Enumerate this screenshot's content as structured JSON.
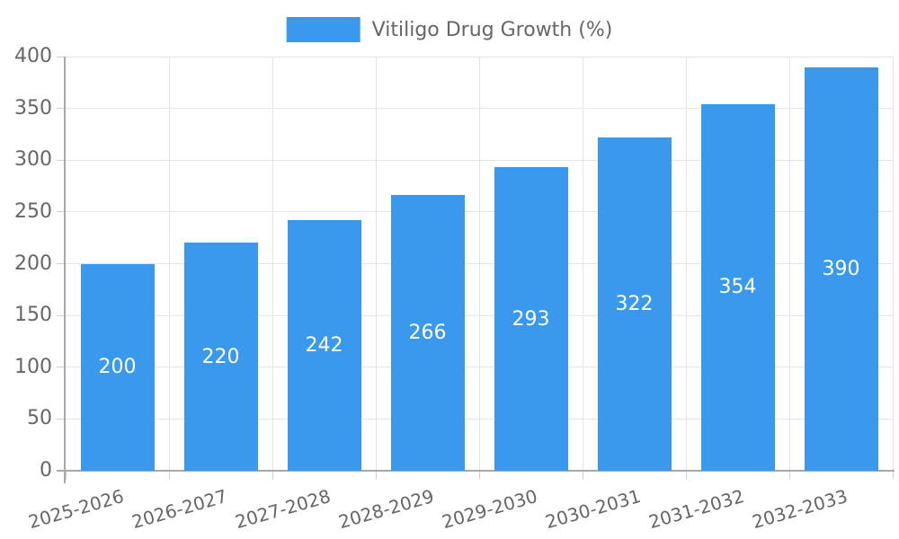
{
  "legend": {
    "label": "Vitiligo Drug Growth (%)"
  },
  "chart_data": {
    "type": "bar",
    "title": "",
    "xlabel": "",
    "ylabel": "",
    "legend_entries": [
      "Vitiligo Drug Growth (%)"
    ],
    "legend_position": "top-center",
    "categories": [
      "2025-2026",
      "2026-2027",
      "2027-2028",
      "2028-2029",
      "2029-2030",
      "2030-2031",
      "2031-2032",
      "2032-2033"
    ],
    "values": [
      200,
      220,
      242,
      266,
      293,
      322,
      354,
      390
    ],
    "value_labels_shown": true,
    "value_label_position": "center-of-bar",
    "ylim": [
      0,
      400
    ],
    "ytick_step": 50,
    "yticks": [
      0,
      50,
      100,
      150,
      200,
      250,
      300,
      350,
      400
    ],
    "grid": true,
    "x_label_rotation_deg": -16,
    "colors": {
      "bar": "#3A99EC",
      "value_text": "#FFFFFF",
      "axis_text": "#666666",
      "legend_text": "#666666",
      "grid_line": "#E5E5E5",
      "tick_mark": "#CFCFCF",
      "axis_line": "#A8A8A8",
      "background": "#FFFFFF"
    }
  }
}
